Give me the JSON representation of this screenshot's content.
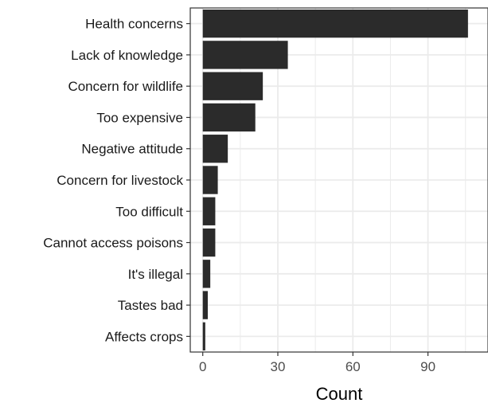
{
  "chart_data": {
    "type": "bar",
    "orientation": "horizontal",
    "categories": [
      "Health concerns",
      "Lack of knowledge",
      "Concern for wildlife",
      "Too expensive",
      "Negative attitude",
      "Concern for livestock",
      "Too difficult",
      "Cannot access poisons",
      "It's illegal",
      "Tastes bad",
      "Affects crops"
    ],
    "values": [
      106,
      34,
      24,
      21,
      10,
      6,
      5,
      5,
      3,
      2,
      1
    ],
    "xlabel": "Count",
    "ylabel": "",
    "xlim": [
      -5,
      114
    ],
    "xticks": [
      0,
      30,
      60,
      90
    ],
    "grid": true,
    "bar_color": "#2b2b2b",
    "grid_color": "#ebebeb"
  }
}
